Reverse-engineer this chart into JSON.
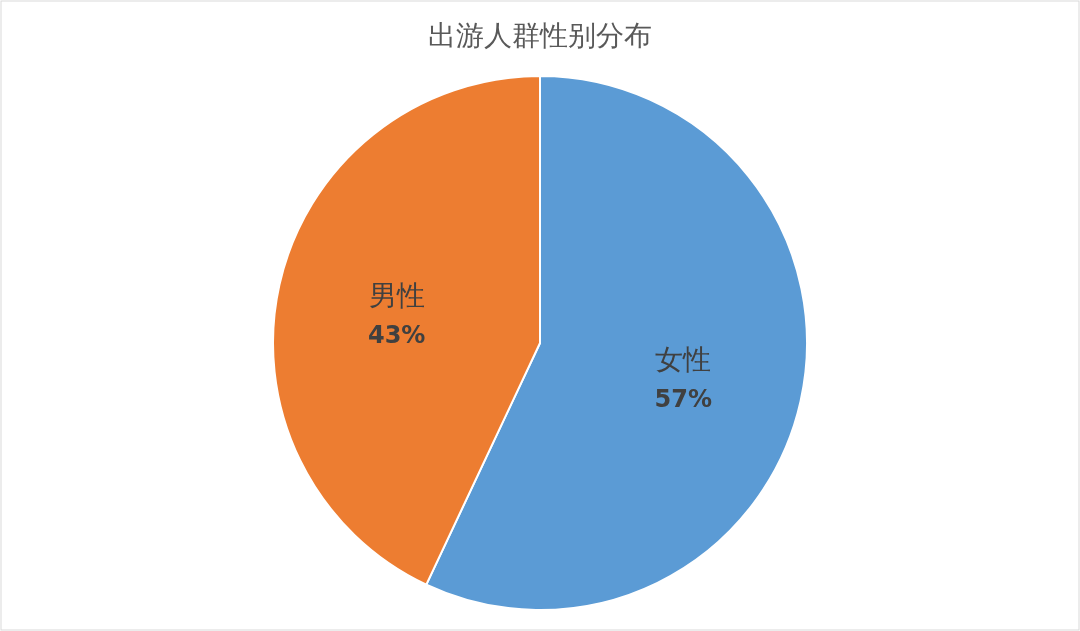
{
  "chart_data": {
    "type": "pie",
    "title": "出游人群性别分布",
    "categories": [
      "女性",
      "男性"
    ],
    "values": [
      57,
      43
    ],
    "colors": [
      "#5b9bd5",
      "#ed7d31"
    ],
    "value_labels": [
      "57%",
      "43%"
    ]
  }
}
